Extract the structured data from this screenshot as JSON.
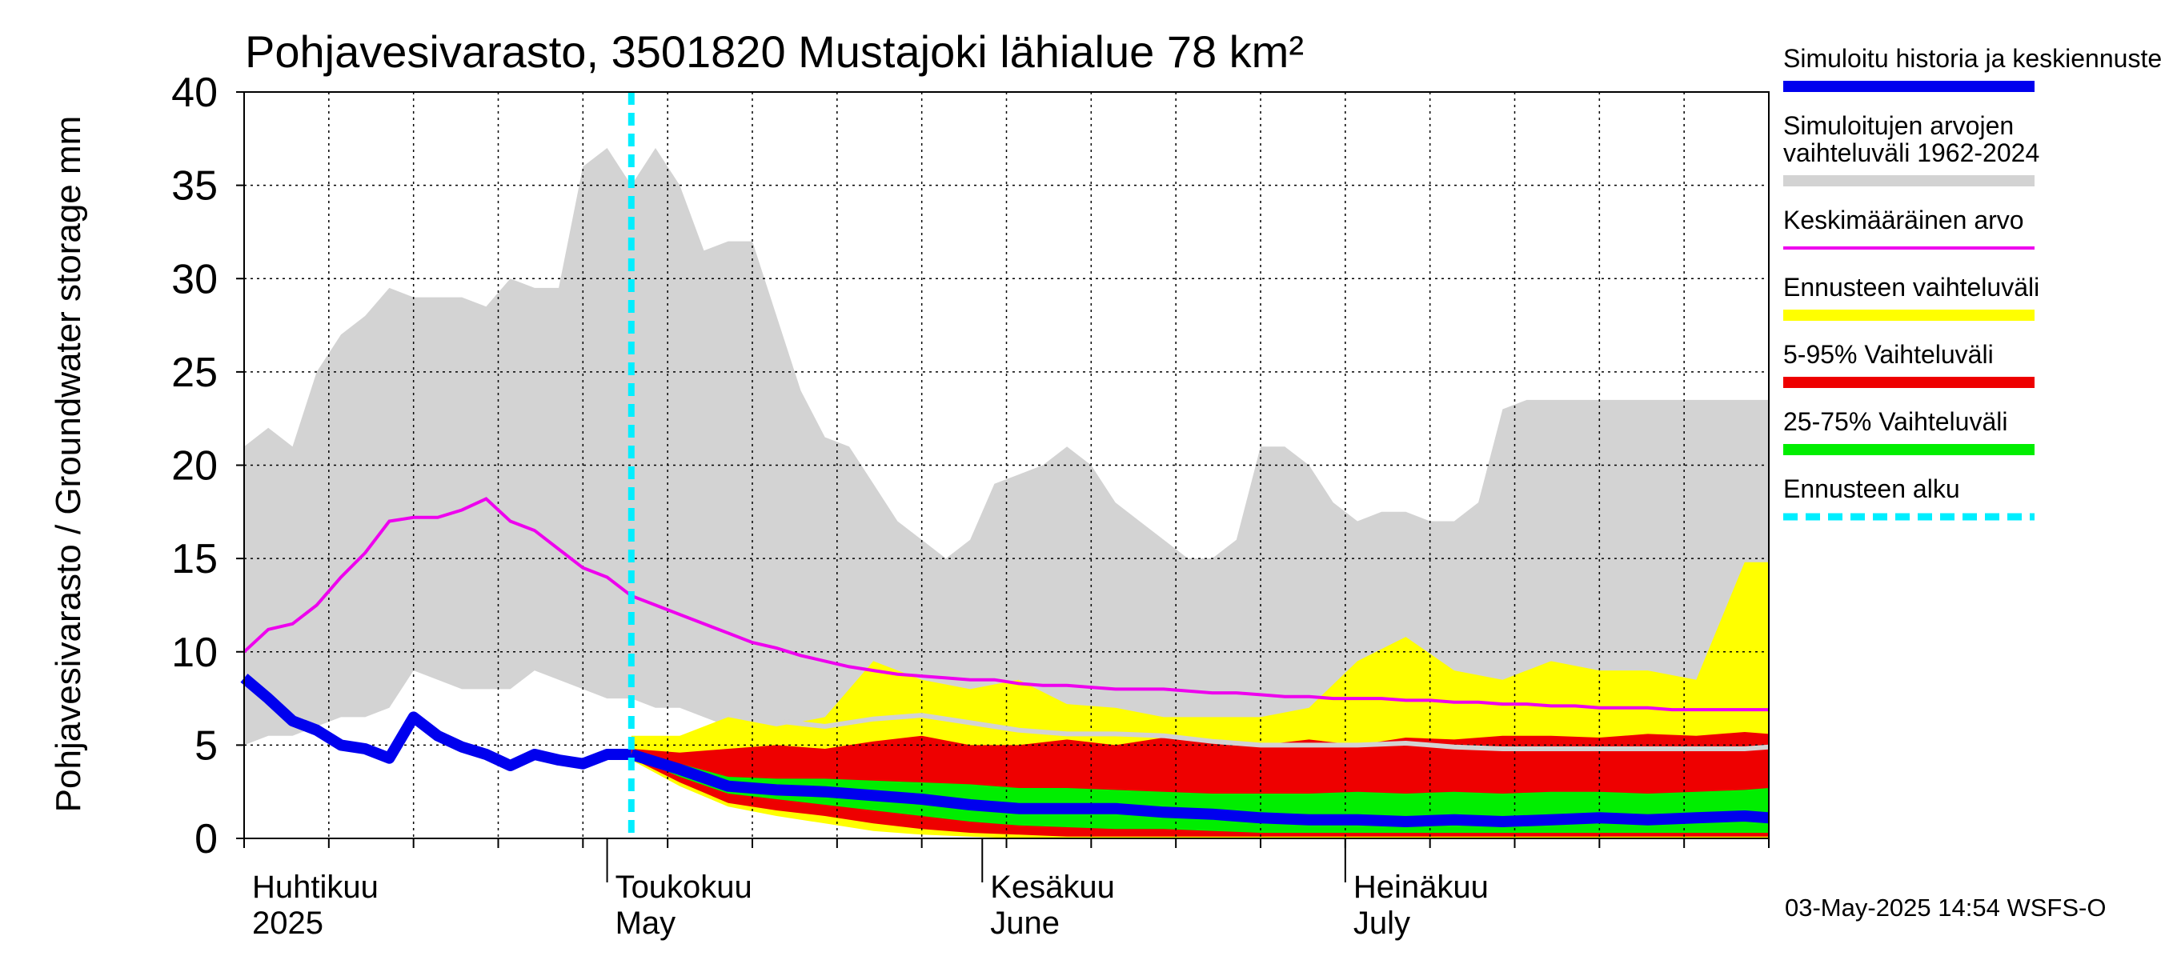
{
  "chart_data": {
    "type": "area",
    "title": "Pohjavesivarasto, 3501820 Mustajoki lähialue 78 km²",
    "ylabel": "Pohjavesivarasto / Groundwater storage   mm",
    "ylim": [
      0,
      40
    ],
    "yticks": [
      0,
      5,
      10,
      15,
      20,
      25,
      30,
      35,
      40
    ],
    "xlim_day": [
      0,
      126
    ],
    "month_labels": [
      {
        "fi": "Huhtikuu",
        "en": "2025",
        "day": 0
      },
      {
        "fi": "Toukokuu",
        "en": "May",
        "day": 30
      },
      {
        "fi": "Kesäkuu",
        "en": "June",
        "day": 61
      },
      {
        "fi": "Heinäkuu",
        "en": "July",
        "day": 91
      }
    ],
    "month_boundaries_day": [
      30,
      61,
      91
    ],
    "forecast_start_day": 32,
    "timestamp": "03-May-2025 14:54 WSFS-O",
    "legend": [
      {
        "label": "Simuloitu historia ja keskiennuste",
        "color": "#0000ee",
        "style": "thick"
      },
      {
        "label": "Simuloitujen arvojen vaihteluväli 1962-2024",
        "color": "#d3d3d3",
        "style": "thick"
      },
      {
        "label": "Keskimääräinen arvo",
        "color": "#ee00ee",
        "style": "thin"
      },
      {
        "label": "Ennusteen vaihteluväli",
        "color": "#ffff00",
        "style": "thick"
      },
      {
        "label": "5-95% Vaihteluväli",
        "color": "#ee0000",
        "style": "thick"
      },
      {
        "label": "25-75% Vaihteluväli",
        "color": "#00ee00",
        "style": "thick"
      },
      {
        "label": "Ennusteen alku",
        "color": "#00eeff",
        "style": "dashed"
      }
    ],
    "series": {
      "history_range": {
        "days": [
          0,
          2,
          4,
          6,
          8,
          10,
          12,
          14,
          16,
          18,
          20,
          22,
          24,
          26,
          28,
          30,
          32,
          34,
          36,
          38,
          40,
          42,
          44,
          46,
          48,
          50,
          52,
          54,
          56,
          58,
          60,
          62,
          64,
          66,
          68,
          70,
          72,
          74,
          76,
          78,
          80,
          82,
          84,
          86,
          88,
          90,
          92,
          94,
          96,
          98,
          100,
          102,
          104,
          106,
          108,
          110,
          112,
          114,
          116,
          118,
          120,
          122,
          124,
          126
        ],
        "upper": [
          21,
          22,
          21,
          25,
          27,
          28,
          29.5,
          29,
          29,
          29,
          28.5,
          30,
          29.5,
          29.5,
          36,
          37,
          35,
          37,
          35,
          31.5,
          32,
          32,
          28,
          24,
          21.5,
          21,
          19,
          17,
          16,
          15,
          16,
          19,
          19.5,
          20,
          21,
          20,
          18,
          17,
          16,
          15,
          15,
          16,
          21,
          21,
          20,
          18,
          17,
          17.5,
          17.5,
          17,
          17,
          18,
          23,
          23.5,
          23.5,
          23.5,
          23.5,
          23.5,
          23.5,
          23.5,
          23.5,
          23.5,
          23.5,
          23.5
        ],
        "lower": [
          5,
          5.5,
          5.5,
          6,
          6.5,
          6.5,
          7,
          9,
          8.5,
          8,
          8,
          8,
          9,
          8.5,
          8,
          7.5,
          7.5,
          7,
          7,
          6.5,
          6,
          6,
          6,
          6,
          6,
          5.5,
          5.5,
          5.5,
          5.5,
          5,
          5,
          5,
          5,
          5,
          5,
          5,
          5,
          5,
          5,
          5,
          5,
          5,
          5,
          5,
          5,
          5,
          5,
          5,
          5,
          5,
          5,
          5,
          5,
          5,
          5,
          5,
          5,
          5,
          5,
          5,
          5,
          5,
          5,
          5
        ]
      },
      "mean_value": {
        "days": [
          0,
          2,
          4,
          6,
          8,
          10,
          12,
          14,
          16,
          18,
          20,
          22,
          24,
          26,
          28,
          30,
          32,
          34,
          36,
          38,
          40,
          42,
          44,
          46,
          48,
          50,
          52,
          54,
          56,
          58,
          60,
          62,
          64,
          66,
          68,
          70,
          72,
          74,
          76,
          78,
          80,
          82,
          84,
          86,
          88,
          90,
          92,
          94,
          96,
          98,
          100,
          102,
          104,
          106,
          108,
          110,
          112,
          114,
          116,
          118,
          120,
          122,
          124,
          126
        ],
        "values": [
          10,
          11.2,
          11.5,
          12.5,
          14,
          15.3,
          17,
          17.2,
          17.2,
          17.6,
          18.2,
          17,
          16.5,
          15.5,
          14.5,
          14,
          13,
          12.5,
          12,
          11.5,
          11,
          10.5,
          10.2,
          9.8,
          9.5,
          9.2,
          9,
          8.8,
          8.7,
          8.6,
          8.5,
          8.5,
          8.3,
          8.2,
          8.2,
          8.1,
          8,
          8,
          8,
          7.9,
          7.8,
          7.8,
          7.7,
          7.6,
          7.6,
          7.5,
          7.5,
          7.5,
          7.4,
          7.4,
          7.3,
          7.3,
          7.2,
          7.2,
          7.1,
          7.1,
          7.0,
          7.0,
          7.0,
          6.9,
          6.9,
          6.9,
          6.9,
          6.9
        ]
      },
      "history_median": {
        "days": [
          0,
          2,
          4,
          6,
          8,
          10,
          12,
          14,
          16,
          18,
          20,
          22,
          24,
          26,
          28,
          30,
          32
        ],
        "values": [
          8.6,
          7.5,
          6.3,
          5.8,
          5.0,
          4.8,
          4.3,
          6.5,
          5.5,
          4.9,
          4.5,
          3.9,
          4.5,
          4.2,
          4.0,
          4.5,
          4.5
        ]
      },
      "forecast_median": {
        "days": [
          32,
          36,
          40,
          44,
          48,
          52,
          56,
          60,
          64,
          68,
          72,
          76,
          80,
          84,
          88,
          92,
          96,
          100,
          104,
          108,
          112,
          116,
          120,
          124,
          126
        ],
        "values": [
          4.5,
          3.7,
          2.8,
          2.6,
          2.5,
          2.3,
          2.1,
          1.8,
          1.6,
          1.6,
          1.6,
          1.4,
          1.3,
          1.1,
          1.0,
          1.0,
          0.9,
          1.0,
          0.9,
          1.0,
          1.1,
          1.0,
          1.1,
          1.2,
          1.1
        ]
      },
      "forecast_p25_75": {
        "days": [
          32,
          36,
          40,
          44,
          48,
          52,
          56,
          60,
          64,
          68,
          72,
          76,
          80,
          84,
          88,
          92,
          96,
          100,
          104,
          108,
          112,
          116,
          120,
          124,
          126
        ],
        "upper": [
          4.6,
          4.0,
          3.3,
          3.2,
          3.2,
          3.1,
          3.0,
          2.9,
          2.7,
          2.7,
          2.6,
          2.5,
          2.4,
          2.4,
          2.4,
          2.5,
          2.4,
          2.5,
          2.4,
          2.5,
          2.5,
          2.4,
          2.5,
          2.6,
          2.7
        ],
        "lower": [
          4.4,
          3.3,
          2.4,
          2.1,
          1.8,
          1.5,
          1.2,
          0.9,
          0.7,
          0.6,
          0.5,
          0.5,
          0.4,
          0.3,
          0.3,
          0.3,
          0.3,
          0.3,
          0.3,
          0.3,
          0.3,
          0.3,
          0.3,
          0.3,
          0.3
        ]
      },
      "forecast_p5_95": {
        "days": [
          32,
          36,
          40,
          44,
          48,
          52,
          56,
          60,
          64,
          68,
          72,
          76,
          80,
          84,
          88,
          92,
          96,
          100,
          104,
          108,
          112,
          116,
          120,
          124,
          126
        ],
        "upper": [
          4.8,
          4.6,
          4.8,
          5.0,
          4.8,
          5.2,
          5.5,
          5.0,
          5.0,
          5.3,
          5.0,
          5.4,
          5.3,
          5.0,
          5.3,
          5.0,
          5.4,
          5.3,
          5.5,
          5.5,
          5.4,
          5.6,
          5.5,
          5.7,
          5.6
        ],
        "lower": [
          4.3,
          3.0,
          1.9,
          1.5,
          1.2,
          0.8,
          0.5,
          0.3,
          0.2,
          0.1,
          0.1,
          0.1,
          0.1,
          0.1,
          0.1,
          0.1,
          0.1,
          0.1,
          0.1,
          0.1,
          0.1,
          0.1,
          0.1,
          0.1,
          0.1
        ]
      },
      "forecast_range": {
        "days": [
          32,
          36,
          40,
          44,
          48,
          52,
          56,
          60,
          64,
          68,
          72,
          76,
          80,
          84,
          88,
          92,
          96,
          100,
          104,
          108,
          112,
          116,
          120,
          124,
          126
        ],
        "upper": [
          5.5,
          5.5,
          6.5,
          6,
          6.5,
          9.5,
          8.5,
          8,
          8.5,
          7.2,
          7.0,
          6.5,
          6.5,
          6.5,
          7.0,
          9.5,
          10.8,
          9.0,
          8.5,
          9.5,
          9.0,
          9.0,
          8.5,
          14.8,
          14.8
        ],
        "lower": [
          4.2,
          2.8,
          1.7,
          1.2,
          0.8,
          0.4,
          0.2,
          0.1,
          0.0,
          0.0,
          0.0,
          0.0,
          0.0,
          0.0,
          0.0,
          0.0,
          0.0,
          0.0,
          0.0,
          0.0,
          0.0,
          0.0,
          0.0,
          0.0,
          0.0
        ]
      },
      "grey_forecast_line": {
        "days": [
          44,
          48,
          52,
          56,
          60,
          64,
          68,
          72,
          76,
          80,
          84,
          88,
          92,
          96,
          100,
          104,
          108,
          112,
          116,
          120,
          124,
          126
        ],
        "values": [
          6.3,
          6.0,
          6.4,
          6.6,
          6.2,
          5.8,
          5.6,
          5.6,
          5.5,
          5.2,
          5.0,
          5.0,
          5.0,
          5.1,
          4.9,
          4.8,
          4.8,
          4.8,
          4.8,
          4.8,
          4.8,
          4.9
        ]
      }
    }
  }
}
